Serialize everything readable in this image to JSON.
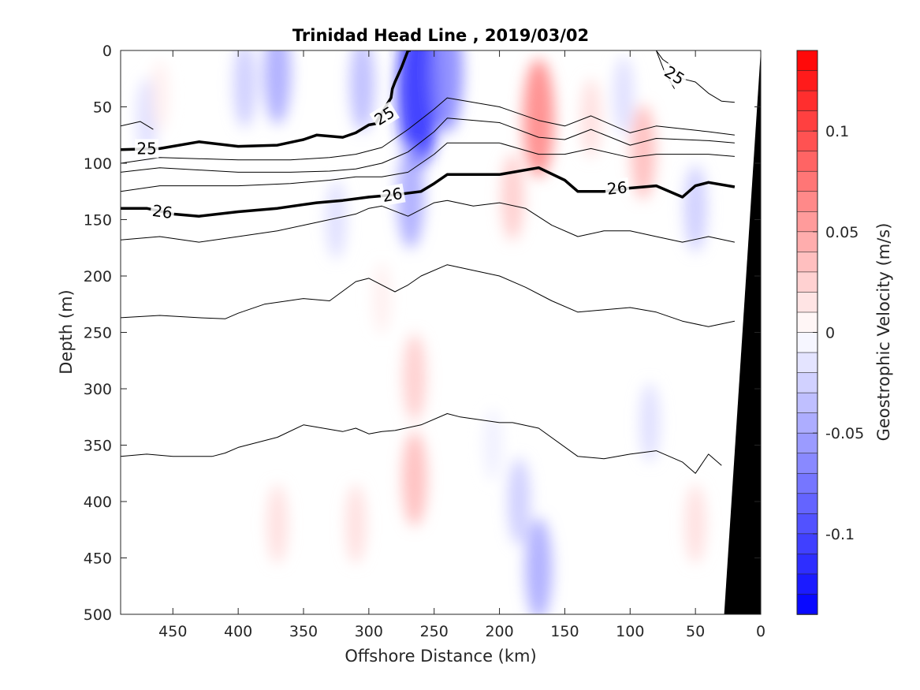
{
  "chart_data": {
    "type": "heatmap",
    "title": "Trinidad Head Line , 2019/03/02",
    "xlabel": "Offshore Distance (km)",
    "ylabel": "Depth (m)",
    "xlim": [
      490,
      0
    ],
    "ylim": [
      0,
      500
    ],
    "x_reversed": true,
    "y_reversed": true,
    "x_ticks": [
      "450",
      "400",
      "350",
      "300",
      "250",
      "200",
      "150",
      "100",
      "50",
      "0"
    ],
    "y_ticks": [
      "0",
      "50",
      "100",
      "150",
      "200",
      "250",
      "300",
      "350",
      "400",
      "450",
      "500"
    ],
    "colorbar": {
      "label": "Geostrophic Velocity (m/s)",
      "range": [
        -0.14,
        0.14
      ],
      "ticks": [
        "0.1",
        "0.05",
        "0",
        "-0.05",
        "-0.1"
      ],
      "tick_values": [
        0.1,
        0.05,
        0,
        -0.05,
        -0.1
      ],
      "levels": 28,
      "color_min": "#0000ff",
      "color_mid": "#ffffff",
      "color_max": "#ff0000"
    },
    "velocity_features": [
      {
        "x": 262,
        "depth": 35,
        "value": -0.12
      },
      {
        "x": 240,
        "depth": 20,
        "value": -0.07
      },
      {
        "x": 268,
        "depth": 130,
        "value": -0.05
      },
      {
        "x": 370,
        "depth": 20,
        "value": -0.05
      },
      {
        "x": 395,
        "depth": 30,
        "value": -0.03
      },
      {
        "x": 305,
        "depth": 30,
        "value": -0.04
      },
      {
        "x": 325,
        "depth": 150,
        "value": -0.02
      },
      {
        "x": 470,
        "depth": 60,
        "value": -0.02
      },
      {
        "x": 170,
        "depth": 60,
        "value": 0.07
      },
      {
        "x": 190,
        "depth": 130,
        "value": 0.03
      },
      {
        "x": 460,
        "depth": 40,
        "value": 0.01
      },
      {
        "x": 290,
        "depth": 220,
        "value": 0.01
      },
      {
        "x": 265,
        "depth": 380,
        "value": 0.04
      },
      {
        "x": 265,
        "depth": 290,
        "value": 0.03
      },
      {
        "x": 370,
        "depth": 420,
        "value": 0.02
      },
      {
        "x": 310,
        "depth": 420,
        "value": 0.02
      },
      {
        "x": 185,
        "depth": 400,
        "value": -0.03
      },
      {
        "x": 170,
        "depth": 460,
        "value": -0.05
      },
      {
        "x": 205,
        "depth": 350,
        "value": -0.01
      },
      {
        "x": 90,
        "depth": 90,
        "value": 0.04
      },
      {
        "x": 85,
        "depth": 330,
        "value": -0.02
      },
      {
        "x": 50,
        "depth": 140,
        "value": -0.03
      },
      {
        "x": 105,
        "depth": 40,
        "value": -0.02
      },
      {
        "x": 50,
        "depth": 420,
        "value": 0.02
      },
      {
        "x": 130,
        "depth": 60,
        "value": 0.02
      }
    ],
    "isopycnals": [
      {
        "label": "",
        "bold": false,
        "x": [
          490,
          475,
          465
        ],
        "depth": [
          67,
          63,
          70
        ]
      },
      {
        "label": "25",
        "bold": true,
        "x": [
          490,
          460,
          430,
          400,
          370,
          350,
          340,
          320,
          310,
          300,
          295,
          283,
          282,
          280,
          275,
          270,
          268
        ],
        "depth": [
          88,
          87,
          81,
          85,
          84,
          79,
          75,
          77,
          73,
          66,
          65,
          42,
          34,
          28,
          15,
          0,
          0
        ]
      },
      {
        "label": "",
        "bold": false,
        "x": [
          80,
          75,
          70,
          60,
          50,
          40,
          30,
          20
        ],
        "depth": [
          0,
          8,
          12,
          25,
          28,
          38,
          45,
          46
        ]
      },
      {
        "label": "25",
        "bold": false,
        "x": [
          80,
          74,
          66
        ],
        "depth": [
          0,
          18,
          34
        ]
      },
      {
        "label": "",
        "bold": false,
        "x": [
          490,
          460,
          400,
          360,
          330,
          310,
          290,
          270,
          250,
          240,
          200,
          170,
          150,
          130,
          100,
          80,
          40,
          20
        ],
        "depth": [
          100,
          95,
          97,
          97,
          95,
          92,
          86,
          70,
          52,
          42,
          50,
          62,
          67,
          58,
          73,
          67,
          72,
          75
        ]
      },
      {
        "label": "",
        "bold": false,
        "x": [
          490,
          460,
          400,
          360,
          330,
          310,
          290,
          270,
          250,
          240,
          200,
          170,
          150,
          130,
          100,
          80,
          40,
          20
        ],
        "depth": [
          108,
          104,
          108,
          108,
          107,
          105,
          100,
          90,
          72,
          60,
          64,
          77,
          79,
          70,
          84,
          78,
          80,
          82
        ]
      },
      {
        "label": "",
        "bold": false,
        "x": [
          490,
          460,
          400,
          360,
          330,
          310,
          290,
          270,
          250,
          240,
          200,
          170,
          150,
          130,
          100,
          80,
          40,
          20
        ],
        "depth": [
          125,
          120,
          120,
          118,
          115,
          112,
          112,
          108,
          92,
          82,
          82,
          92,
          92,
          87,
          95,
          92,
          92,
          94
        ]
      },
      {
        "label": "26",
        "bold": true,
        "x": [
          490,
          470,
          450,
          430,
          400,
          370,
          340,
          320,
          300,
          280,
          260,
          250,
          240,
          215,
          200,
          170,
          150,
          140,
          120,
          100,
          80,
          60,
          50,
          40,
          20
        ],
        "depth": [
          140,
          140,
          145,
          147,
          143,
          140,
          135,
          133,
          130,
          128,
          125,
          118,
          110,
          110,
          110,
          104,
          115,
          125,
          125,
          122,
          120,
          130,
          120,
          117,
          121
        ]
      },
      {
        "label": "",
        "bold": false,
        "x": [
          490,
          460,
          430,
          400,
          370,
          350,
          330,
          310,
          300,
          290,
          270,
          250,
          240,
          220,
          200,
          180,
          160,
          140,
          120,
          100,
          80,
          60,
          40,
          20
        ],
        "depth": [
          168,
          165,
          170,
          165,
          160,
          155,
          150,
          145,
          140,
          138,
          147,
          135,
          133,
          138,
          135,
          140,
          155,
          165,
          160,
          160,
          165,
          170,
          165,
          170
        ]
      },
      {
        "label": "",
        "bold": false,
        "x": [
          490,
          460,
          430,
          410,
          400,
          380,
          350,
          330,
          310,
          300,
          280,
          270,
          260,
          240,
          220,
          200,
          180,
          160,
          140,
          120,
          100,
          80,
          60,
          40,
          20
        ],
        "depth": [
          237,
          235,
          237,
          238,
          233,
          225,
          220,
          222,
          205,
          202,
          214,
          208,
          200,
          190,
          195,
          200,
          210,
          222,
          232,
          230,
          228,
          232,
          240,
          245,
          240
        ]
      },
      {
        "label": "",
        "bold": false,
        "x": [
          490,
          470,
          450,
          420,
          410,
          400,
          370,
          350,
          320,
          310,
          300,
          290,
          280,
          260,
          240,
          230,
          200,
          190,
          170,
          140,
          120,
          100,
          80,
          60,
          50,
          40,
          30
        ],
        "depth": [
          360,
          358,
          360,
          360,
          357,
          352,
          343,
          332,
          338,
          335,
          340,
          338,
          337,
          332,
          322,
          325,
          330,
          330,
          335,
          360,
          362,
          358,
          355,
          365,
          375,
          358,
          368
        ]
      }
    ],
    "inline_labels": [
      {
        "text": "25",
        "x": 470,
        "depth": 87,
        "rotate": 0
      },
      {
        "text": "25",
        "x": 288,
        "depth": 58,
        "rotate": -32
      },
      {
        "text": "25",
        "x": 66,
        "depth": 22,
        "rotate": 32
      },
      {
        "text": "26",
        "x": 458,
        "depth": 143,
        "rotate": 8
      },
      {
        "text": "26",
        "x": 282,
        "depth": 128,
        "rotate": -10
      },
      {
        "text": "26",
        "x": 110,
        "depth": 122,
        "rotate": -6
      }
    ],
    "bathymetry": {
      "x": [
        0,
        28,
        0
      ],
      "depth": [
        0,
        500,
        500
      ],
      "color": "#000000"
    }
  }
}
